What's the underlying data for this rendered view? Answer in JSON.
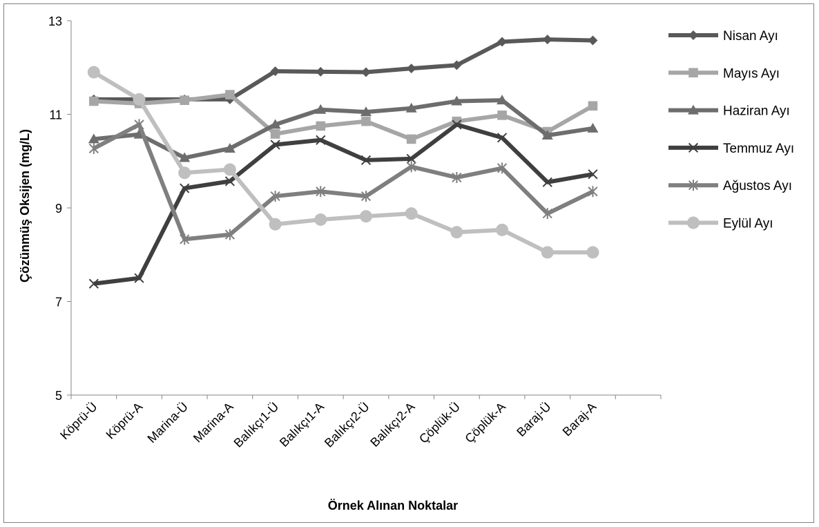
{
  "chart_data": {
    "type": "line",
    "title": "",
    "xlabel": "Örnek Alınan Noktalar",
    "ylabel": "Çözünmüş Oksijen (mg/L)",
    "ylim": [
      5,
      13
    ],
    "yticks": [
      5,
      7,
      9,
      11,
      13
    ],
    "grid": false,
    "legend_position": "right",
    "categories": [
      "Köprü-Ü",
      "Köprü-A",
      "Marina-Ü",
      "Marina-A",
      "Balıkçı1-Ü",
      "Balıkçı1-A",
      "Balıkçı2-Ü",
      "Balıkçı2-A",
      "Çöplük-Ü",
      "Çöplük-A",
      "Baraj-Ü",
      "Baraj-A"
    ],
    "series": [
      {
        "name": "Nisan Ayı",
        "marker": "diamond",
        "color": "#595959",
        "values": [
          11.32,
          11.32,
          11.32,
          11.32,
          11.92,
          11.91,
          11.9,
          11.98,
          12.05,
          12.55,
          12.6,
          12.58
        ]
      },
      {
        "name": "Mayıs Ayı",
        "marker": "square",
        "color": "#a6a6a6",
        "values": [
          11.28,
          11.23,
          11.3,
          11.42,
          10.58,
          10.75,
          10.85,
          10.47,
          10.85,
          10.98,
          10.63,
          11.18
        ]
      },
      {
        "name": "Haziran Ayı",
        "marker": "triangle",
        "color": "#6d6d6d",
        "values": [
          10.47,
          10.57,
          10.07,
          10.27,
          10.78,
          11.1,
          11.05,
          11.13,
          11.28,
          11.3,
          10.55,
          10.7
        ]
      },
      {
        "name": "Temmuz Ayı",
        "marker": "x",
        "color": "#3f3f3f",
        "values": [
          7.38,
          7.5,
          9.42,
          9.57,
          10.35,
          10.45,
          10.02,
          10.05,
          10.78,
          10.5,
          9.55,
          9.72
        ]
      },
      {
        "name": "Ağustos Ayı",
        "marker": "star",
        "color": "#7f7f7f",
        "values": [
          10.27,
          10.78,
          8.33,
          8.43,
          9.25,
          9.35,
          9.25,
          9.88,
          9.65,
          9.85,
          8.88,
          9.35
        ]
      },
      {
        "name": "Eylül Ayı",
        "marker": "circle",
        "color": "#bfbfbf",
        "values": [
          11.9,
          11.32,
          9.75,
          9.82,
          8.65,
          8.75,
          8.82,
          8.88,
          8.48,
          8.53,
          8.05,
          8.05
        ]
      }
    ]
  }
}
